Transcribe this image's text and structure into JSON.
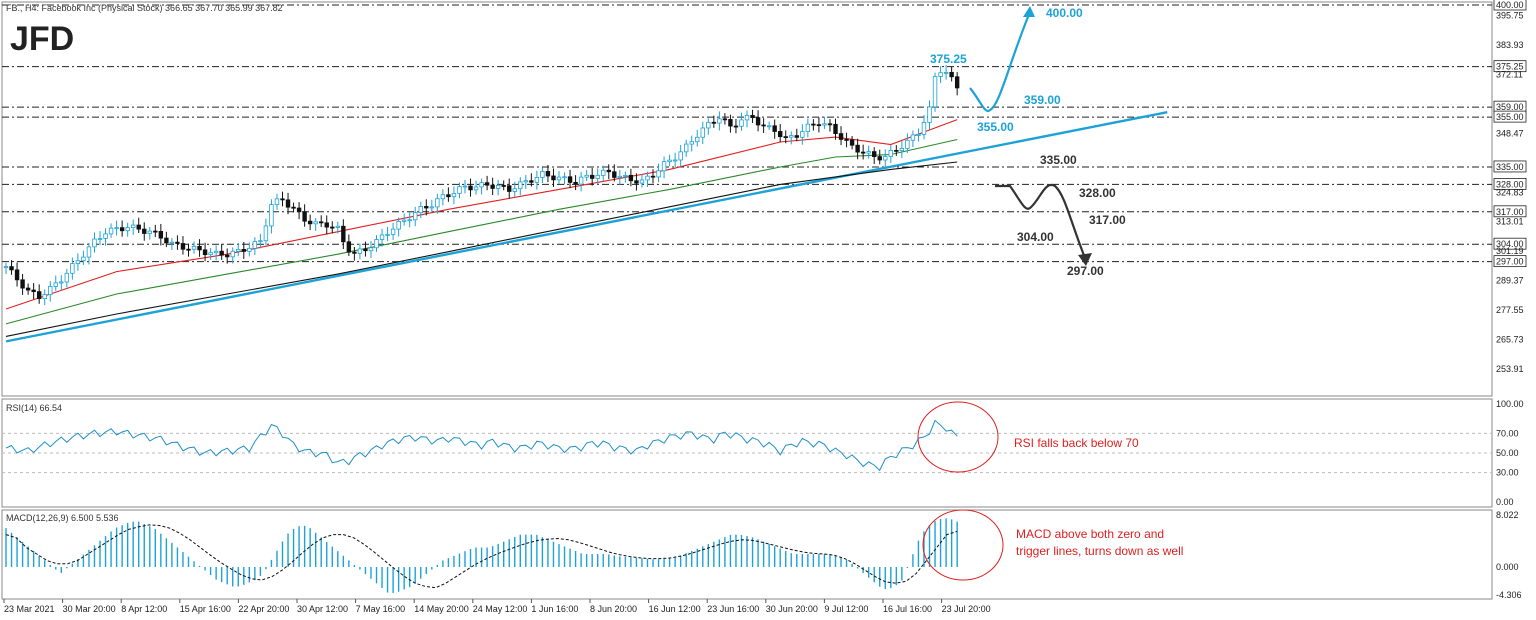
{
  "header": {
    "symbol_line": "FB., H4: Facebook Inc (Physical Stock) 366.65 367.70 365.99 367.82",
    "logo": "JFD"
  },
  "colors": {
    "candle_up": "#1da2d8",
    "candle_down": "#111111",
    "ma_fast": "#e02020",
    "ma_mid": "#2a8a2a",
    "ma_slow": "#111111",
    "trendline": "#1da2d8",
    "bull_scenario": "#1da2d8",
    "bear_scenario": "#333333",
    "annotation": "#e02020",
    "rsi_line": "#1e90c8",
    "macd_hist": "#1da2d8"
  },
  "chart_data": {
    "type": "candlestick",
    "price_axis_ticks": [
      "400.00",
      "395.75",
      "383.93",
      "375.25",
      "372.11",
      "359.00",
      "355.00",
      "348.47",
      "335.00",
      "328.00",
      "324.83",
      "317.00",
      "313.01",
      "304.00",
      "301.19",
      "297.00",
      "289.37",
      "277.55",
      "265.73",
      "253.91"
    ],
    "level_lines": [
      {
        "value": 375.25,
        "label": "375.25"
      },
      {
        "value": 359.0,
        "label": "359.00"
      },
      {
        "value": 355.0,
        "label": "355.00"
      },
      {
        "value": 335.0,
        "label": "335.00"
      },
      {
        "value": 328.0,
        "label": "328.00"
      },
      {
        "value": 317.0,
        "label": "317.00"
      },
      {
        "value": 304.0,
        "label": "304.00"
      },
      {
        "value": 297.0,
        "label": "297.00"
      }
    ],
    "bull_scenario_labels": [
      "400.00",
      "375.25",
      "359.00",
      "355.00"
    ],
    "bear_scenario_labels": [
      "335.00",
      "328.00",
      "317.00",
      "304.00",
      "297.00"
    ],
    "time_axis_labels": [
      "23 Mar 2021",
      "30 Mar 20:00",
      "8 Apr 12:00",
      "15 Apr 16:00",
      "22 Apr 20:00",
      "30 Apr 12:00",
      "7 May 16:00",
      "14 May 20:00",
      "24 May 12:00",
      "1 Jun 16:00",
      "8 Jun 20:00",
      "16 Jun 12:00",
      "23 Jun 16:00",
      "30 Jun 20:00",
      "9 Jul 12:00",
      "16 Jul 16:00",
      "23 Jul 20:00"
    ],
    "price_path": [
      [
        0,
        295
      ],
      [
        2,
        290
      ],
      [
        4,
        285
      ],
      [
        6,
        283
      ],
      [
        8,
        286
      ],
      [
        10,
        290
      ],
      [
        12,
        295
      ],
      [
        14,
        300
      ],
      [
        16,
        305
      ],
      [
        18,
        309
      ],
      [
        20,
        310
      ],
      [
        22,
        311
      ],
      [
        24,
        310
      ],
      [
        26,
        309
      ],
      [
        28,
        307
      ],
      [
        30,
        304
      ],
      [
        32,
        303
      ],
      [
        34,
        302
      ],
      [
        36,
        301
      ],
      [
        38,
        300
      ],
      [
        40,
        300
      ],
      [
        42,
        301
      ],
      [
        44,
        303
      ],
      [
        46,
        305
      ],
      [
        48,
        320
      ],
      [
        50,
        322
      ],
      [
        52,
        318
      ],
      [
        54,
        314
      ],
      [
        56,
        312
      ],
      [
        58,
        312
      ],
      [
        60,
        310
      ],
      [
        61,
        305
      ],
      [
        62,
        302
      ],
      [
        63,
        300
      ],
      [
        65,
        302
      ],
      [
        67,
        305
      ],
      [
        69,
        309
      ],
      [
        71,
        312
      ],
      [
        73,
        315
      ],
      [
        75,
        318
      ],
      [
        77,
        320
      ],
      [
        79,
        323
      ],
      [
        81,
        325
      ],
      [
        83,
        327
      ],
      [
        85,
        327
      ],
      [
        87,
        328
      ],
      [
        89,
        327
      ],
      [
        91,
        326
      ],
      [
        93,
        328
      ],
      [
        95,
        330
      ],
      [
        97,
        332
      ],
      [
        99,
        331
      ],
      [
        101,
        330
      ],
      [
        103,
        329
      ],
      [
        105,
        331
      ],
      [
        107,
        332
      ],
      [
        109,
        333
      ],
      [
        111,
        331
      ],
      [
        113,
        330
      ],
      [
        115,
        329
      ],
      [
        117,
        332
      ],
      [
        119,
        336
      ],
      [
        121,
        339
      ],
      [
        123,
        343
      ],
      [
        125,
        348
      ],
      [
        127,
        352
      ],
      [
        129,
        355
      ],
      [
        131,
        351
      ],
      [
        133,
        354
      ],
      [
        135,
        355
      ],
      [
        137,
        351
      ],
      [
        139,
        350
      ],
      [
        141,
        346
      ],
      [
        143,
        348
      ],
      [
        145,
        351
      ],
      [
        147,
        353
      ],
      [
        149,
        351
      ],
      [
        151,
        347
      ],
      [
        153,
        343
      ],
      [
        155,
        341
      ],
      [
        157,
        339
      ],
      [
        159,
        339
      ],
      [
        161,
        342
      ],
      [
        163,
        345
      ],
      [
        165,
        349
      ],
      [
        167,
        358
      ],
      [
        168,
        371
      ],
      [
        169,
        374
      ],
      [
        170,
        373
      ],
      [
        171,
        370
      ],
      [
        172,
        367
      ]
    ],
    "ma_fast_path": [
      [
        0,
        278
      ],
      [
        20,
        293
      ],
      [
        40,
        300
      ],
      [
        60,
        309
      ],
      [
        80,
        318
      ],
      [
        100,
        326
      ],
      [
        120,
        334
      ],
      [
        140,
        345
      ],
      [
        150,
        347
      ],
      [
        160,
        344
      ],
      [
        172,
        354
      ]
    ],
    "ma_mid_path": [
      [
        0,
        272
      ],
      [
        20,
        284
      ],
      [
        40,
        292
      ],
      [
        60,
        300
      ],
      [
        80,
        309
      ],
      [
        100,
        318
      ],
      [
        120,
        326
      ],
      [
        140,
        335
      ],
      [
        150,
        339
      ],
      [
        160,
        340
      ],
      [
        172,
        346
      ]
    ],
    "ma_slow_path": [
      [
        0,
        267
      ],
      [
        20,
        276
      ],
      [
        40,
        284
      ],
      [
        60,
        292
      ],
      [
        80,
        301
      ],
      [
        100,
        310
      ],
      [
        120,
        319
      ],
      [
        140,
        328
      ],
      [
        160,
        334
      ],
      [
        172,
        337
      ]
    ],
    "trendline": [
      [
        0,
        265
      ],
      [
        210,
        357
      ]
    ],
    "bull_path_labels": {
      "start": "367.70",
      "dip": "359.00",
      "target": "400.00"
    },
    "rsi": {
      "label": "RSI(14) 66.54",
      "value": 66.54,
      "levels": [
        "100.00",
        "70.00",
        "50.00",
        "30.00",
        "0.00"
      ],
      "series": [
        [
          0,
          55
        ],
        [
          4,
          52
        ],
        [
          8,
          60
        ],
        [
          12,
          66
        ],
        [
          16,
          70
        ],
        [
          20,
          72
        ],
        [
          24,
          68
        ],
        [
          28,
          64
        ],
        [
          32,
          56
        ],
        [
          36,
          50
        ],
        [
          40,
          52
        ],
        [
          44,
          55
        ],
        [
          48,
          78
        ],
        [
          50,
          70
        ],
        [
          52,
          58
        ],
        [
          54,
          52
        ],
        [
          56,
          50
        ],
        [
          58,
          48
        ],
        [
          60,
          40
        ],
        [
          62,
          42
        ],
        [
          64,
          48
        ],
        [
          66,
          52
        ],
        [
          68,
          58
        ],
        [
          70,
          62
        ],
        [
          72,
          65
        ],
        [
          74,
          66
        ],
        [
          76,
          64
        ],
        [
          78,
          62
        ],
        [
          80,
          65
        ],
        [
          82,
          63
        ],
        [
          84,
          60
        ],
        [
          86,
          58
        ],
        [
          88,
          62
        ],
        [
          90,
          58
        ],
        [
          92,
          55
        ],
        [
          94,
          56
        ],
        [
          96,
          60
        ],
        [
          98,
          58
        ],
        [
          100,
          55
        ],
        [
          102,
          54
        ],
        [
          104,
          56
        ],
        [
          106,
          60
        ],
        [
          108,
          60
        ],
        [
          110,
          56
        ],
        [
          112,
          54
        ],
        [
          114,
          52
        ],
        [
          116,
          58
        ],
        [
          118,
          62
        ],
        [
          120,
          66
        ],
        [
          122,
          68
        ],
        [
          124,
          70
        ],
        [
          126,
          66
        ],
        [
          128,
          64
        ],
        [
          130,
          70
        ],
        [
          132,
          68
        ],
        [
          134,
          64
        ],
        [
          136,
          62
        ],
        [
          138,
          58
        ],
        [
          140,
          52
        ],
        [
          142,
          58
        ],
        [
          144,
          62
        ],
        [
          146,
          60
        ],
        [
          148,
          58
        ],
        [
          150,
          52
        ],
        [
          152,
          48
        ],
        [
          154,
          42
        ],
        [
          156,
          38
        ],
        [
          158,
          36
        ],
        [
          160,
          46
        ],
        [
          162,
          52
        ],
        [
          164,
          58
        ],
        [
          166,
          66
        ],
        [
          168,
          80
        ],
        [
          169,
          78
        ],
        [
          170,
          76
        ],
        [
          171,
          70
        ],
        [
          172,
          67
        ]
      ]
    },
    "macd": {
      "label": "MACD(12,26,9) 6.500 5.536",
      "macd_value": 6.5,
      "signal_value": 5.536,
      "axis_ticks": [
        "8.022",
        "0.000",
        "-4.306"
      ],
      "histogram": [
        6,
        5,
        4,
        3,
        2,
        1,
        0,
        -1,
        0,
        1,
        2,
        3,
        4,
        5,
        6,
        6.5,
        7,
        7,
        6.5,
        6,
        5,
        4,
        3,
        2,
        1,
        0,
        -1,
        -2,
        -2.5,
        -3,
        -3,
        -2.5,
        -2,
        -1,
        1,
        3,
        5,
        6,
        6.5,
        6,
        5,
        4,
        3,
        2,
        1,
        0,
        -1,
        -2,
        -3,
        -4,
        -4,
        -3.5,
        -3,
        -2,
        -1,
        0,
        1,
        1.5,
        2,
        2.5,
        3,
        3,
        3,
        3.5,
        4,
        4.5,
        5,
        5,
        5,
        4.5,
        4,
        3.5,
        3,
        2.5,
        2,
        2,
        2,
        2,
        1.8,
        1.6,
        1.5,
        1.4,
        1.3,
        1.2,
        1.2,
        1.3,
        1.5,
        2,
        2.5,
        3,
        3.5,
        4,
        4.5,
        5,
        5,
        4.8,
        4.5,
        4,
        3.5,
        3,
        2.5,
        2,
        2,
        2,
        2,
        2,
        2,
        1.5,
        1,
        0,
        -1,
        -2,
        -3,
        -3.5,
        -3,
        -2,
        1,
        4,
        6,
        7,
        7.5,
        7.5,
        7
      ],
      "signal": [
        5,
        4.5,
        3,
        2,
        1,
        0.5,
        0.5,
        1,
        2,
        3,
        4,
        5,
        5.8,
        6.2,
        6.5,
        6.4,
        6,
        5.2,
        4.2,
        3,
        1.8,
        0.7,
        -0.3,
        -1.2,
        -1.8,
        -2,
        -1.5,
        -0.5,
        0.8,
        2.2,
        3.5,
        4.5,
        5,
        5,
        4.5,
        3.5,
        2.3,
        1,
        -0.3,
        -1.5,
        -2.5,
        -3,
        -3.2,
        -2.5,
        -1.5,
        -0.5,
        0.5,
        1.3,
        2,
        2.6,
        3.2,
        3.7,
        4.1,
        4.3,
        4.4,
        4.2,
        3.8,
        3.3,
        2.8,
        2.3,
        1.9,
        1.6,
        1.4,
        1.3,
        1.3,
        1.4,
        1.7,
        2.1,
        2.6,
        3.1,
        3.6,
        4,
        4.2,
        4.1,
        3.8,
        3.4,
        3,
        2.6,
        2.3,
        2.1,
        2,
        1.8,
        1.3,
        0.5,
        -0.5,
        -1.5,
        -2.3,
        -2.5,
        -2.2,
        -1,
        1,
        3,
        5,
        5.5
      ]
    },
    "annotations": {
      "rsi_note": "RSI falls back below 70",
      "macd_note_line1": "MACD above both zero and",
      "macd_note_line2": "trigger lines, turns down as well"
    }
  }
}
